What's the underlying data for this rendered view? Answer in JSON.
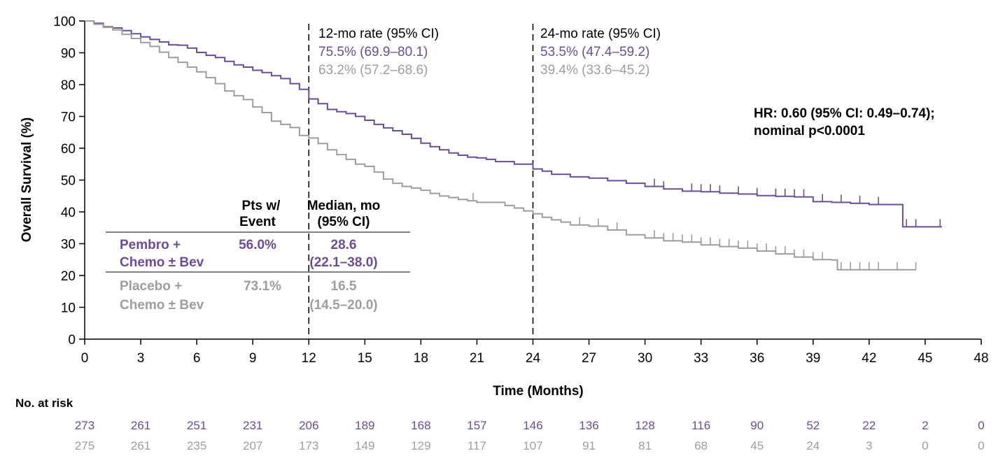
{
  "chart_data": {
    "type": "line",
    "subtype": "kaplan-meier",
    "xlabel": "Time (Months)",
    "ylabel": "Overall Survival (%)",
    "xlim": [
      0,
      48
    ],
    "ylim": [
      0,
      100
    ],
    "xticks": [
      0,
      3,
      6,
      9,
      12,
      15,
      18,
      21,
      24,
      27,
      30,
      33,
      36,
      39,
      42,
      45,
      48
    ],
    "yticks": [
      0,
      10,
      20,
      30,
      40,
      50,
      60,
      70,
      80,
      90,
      100
    ],
    "colors": {
      "pembro": "#6b4c9a",
      "placebo": "#9e9e9e",
      "text": "#000000"
    },
    "series": [
      {
        "name": "Pembro + Chemo ± Bev",
        "color": "#6b4c9a",
        "x": [
          0,
          0.5,
          1,
          1.5,
          2,
          2.5,
          3,
          3.5,
          4,
          4.5,
          5,
          5.5,
          6,
          6.5,
          7,
          7.5,
          8,
          8.5,
          9,
          9.5,
          10,
          10.5,
          11,
          11.5,
          12,
          12.5,
          13,
          13.5,
          14,
          14.5,
          15,
          15.5,
          16,
          16.5,
          17,
          17.5,
          18,
          18.5,
          19,
          19.5,
          20,
          20.5,
          21,
          21.5,
          22,
          23,
          24,
          24.5,
          25,
          26,
          27,
          28,
          29,
          30,
          31,
          32,
          33,
          34,
          35,
          36,
          37,
          38,
          39,
          40,
          41,
          42,
          43,
          43.8,
          45,
          45.9
        ],
        "values": [
          100,
          99.3,
          98.2,
          97.8,
          97,
          96,
          95,
          94.2,
          93.4,
          92.5,
          92.4,
          91.5,
          90.1,
          89.2,
          88.5,
          87.3,
          86.2,
          85.5,
          84.5,
          83.8,
          82.8,
          81.9,
          80.3,
          78.5,
          75.5,
          74,
          72.2,
          71.5,
          70.9,
          70,
          68.8,
          67.5,
          66.4,
          65.5,
          64.4,
          63.1,
          61.6,
          60.5,
          59.5,
          58.5,
          57.8,
          57.2,
          57,
          56.5,
          55.8,
          55,
          53.5,
          52.8,
          51.8,
          51,
          50.6,
          49.8,
          49,
          48,
          47.2,
          46.5,
          46.3,
          45.9,
          45.6,
          45.1,
          44.9,
          44.7,
          43.2,
          43,
          42.7,
          42.3,
          42.3,
          35.3,
          35.3,
          35.3
        ],
        "censor_x": [
          30.5,
          31,
          32.5,
          33,
          33.5,
          34,
          35,
          36,
          37,
          37.5,
          38,
          38.5,
          39.5,
          40.5,
          41.5,
          42.5,
          44,
          44.5,
          45.8
        ],
        "pts_event": "56.0%",
        "median": "28.6",
        "median_ci": "(22.1–38.0)",
        "rate_12": "75.5% (69.9–80.1)",
        "rate_24": "53.5% (47.4–59.2)",
        "at_risk": [
          "273",
          "261",
          "251",
          "231",
          "206",
          "189",
          "168",
          "157",
          "146",
          "136",
          "128",
          "116",
          "90",
          "52",
          "22",
          "2",
          "0"
        ]
      },
      {
        "name": "Placebo + Chemo ± Bev",
        "color": "#9e9e9e",
        "x": [
          0,
          0.5,
          1,
          1.5,
          2,
          2.5,
          3,
          3.5,
          4,
          4.5,
          5,
          5.5,
          6,
          6.5,
          7,
          7.5,
          8,
          8.5,
          9,
          9.5,
          10,
          10.5,
          11,
          11.5,
          12,
          12.5,
          13,
          13.5,
          14,
          14.5,
          15,
          15.5,
          16,
          16.5,
          17,
          17.5,
          18,
          18.5,
          19,
          19.5,
          20,
          20.5,
          21,
          21.5,
          22,
          22.5,
          23,
          23.5,
          24,
          24.5,
          25,
          25.5,
          26,
          27,
          28,
          29,
          30,
          31,
          32,
          33,
          34,
          35,
          36,
          37,
          38,
          39,
          40,
          40.3,
          41,
          42,
          43,
          44,
          44.5
        ],
        "values": [
          100,
          99,
          98,
          97.2,
          95.8,
          94.5,
          93.2,
          92,
          90.2,
          88.5,
          87,
          85.5,
          84,
          82.2,
          80.3,
          78,
          76.5,
          75.3,
          73,
          71.2,
          68.5,
          67.5,
          66.5,
          64,
          63.2,
          61.5,
          59.5,
          58,
          56.5,
          55,
          54.3,
          52.5,
          50.3,
          49,
          48,
          47.5,
          46.8,
          45.8,
          45,
          44.5,
          43.9,
          43.5,
          43,
          43,
          43,
          42,
          41.2,
          40.3,
          39.4,
          38.3,
          37.5,
          36.8,
          35.9,
          35.5,
          34.3,
          32.8,
          31.8,
          30.9,
          30.5,
          29.6,
          29.1,
          28.6,
          27.7,
          26.8,
          25.8,
          25,
          24.9,
          21.8,
          21.8,
          21.8,
          21.8,
          21.8,
          21.8
        ],
        "censor_x": [
          10,
          20.8,
          26.5,
          27.5,
          28.5,
          30.5,
          31,
          31.5,
          32,
          32.5,
          33,
          33.5,
          34,
          34.5,
          35,
          35.5,
          36,
          36.5,
          37,
          37.5,
          38,
          38.5,
          39,
          39.5,
          40.5,
          41,
          41.5,
          42,
          42.5,
          43.5,
          44.5
        ],
        "pts_event": "73.1%",
        "median": "16.5",
        "median_ci": "(14.5–20.0)",
        "rate_12": "63.2% (57.2–68.6)",
        "rate_24": "39.4% (33.6–45.2)",
        "at_risk": [
          "275",
          "261",
          "235",
          "207",
          "173",
          "149",
          "129",
          "117",
          "107",
          "91",
          "81",
          "68",
          "45",
          "24",
          "3",
          "0",
          "0"
        ]
      }
    ],
    "annotations": {
      "vlines": [
        12,
        24
      ],
      "rate12_title": "12-mo rate (95% CI)",
      "rate24_title": "24-mo rate (95% CI)",
      "hr_line1": "HR: 0.60 (95% CI: 0.49–0.74);",
      "hr_line2": "nominal p<0.0001"
    },
    "summary_table": {
      "col1_line1": "Pts w/",
      "col1_line2": "Event",
      "col2_line1": "Median, mo",
      "col2_line2": "(95% CI)",
      "row1_label1": "Pembro +",
      "row1_label2": "Chemo ± Bev",
      "row2_label1": "Placebo +",
      "row2_label2": "Chemo ± Bev"
    },
    "at_risk_title": "No. at risk"
  }
}
